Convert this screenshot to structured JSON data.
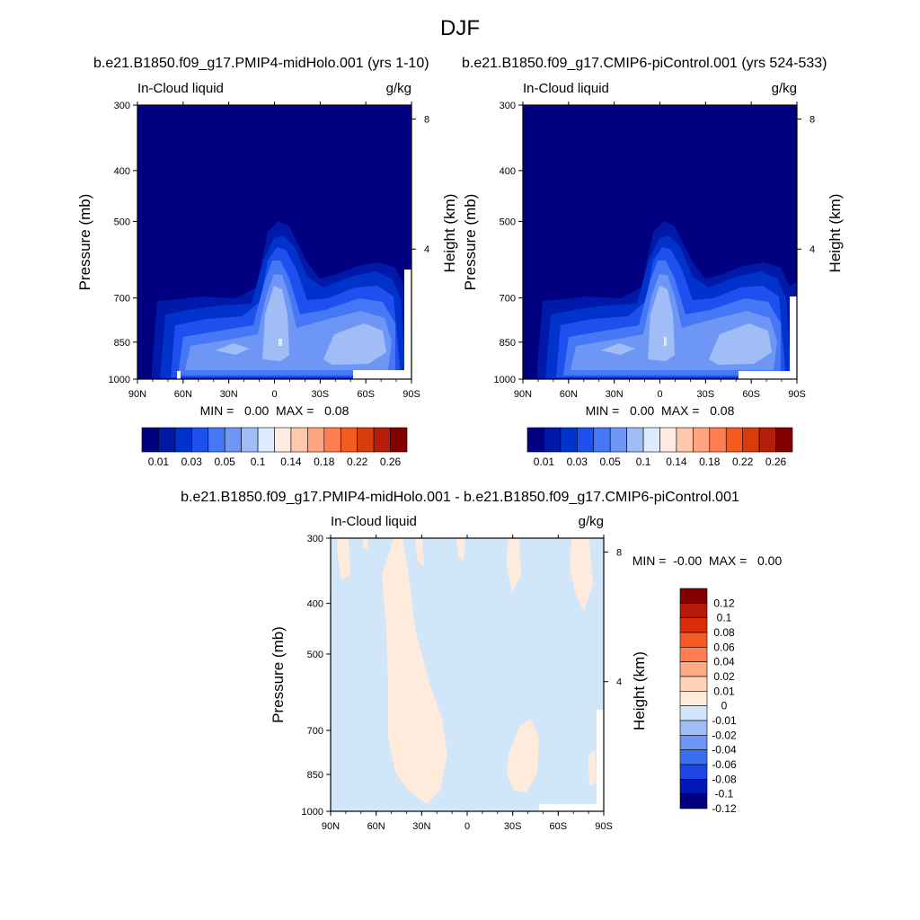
{
  "page_title": "DJF",
  "diff_title": "b.e21.B1850.f09_g17.PMIP4-midHolo.001 - b.e21.B1850.f09_g17.CMIP6-piControl.001",
  "colors": {
    "seq": [
      "#000080",
      "#0019a8",
      "#0032cc",
      "#1e50f0",
      "#4678f5",
      "#6e96f5",
      "#a0bef5",
      "#dcebff",
      "#ffebe1",
      "#ffc8aa",
      "#ffa582",
      "#ff7d50",
      "#f55a1e",
      "#d73c0a",
      "#b41e0a",
      "#820000"
    ],
    "diff": [
      "#000080",
      "#0019b4",
      "#1e46e6",
      "#3c6ef0",
      "#6e96f5",
      "#a0bef5",
      "#d2e6fa",
      "#ffebdc",
      "#ffd2b9",
      "#ffaa82",
      "#ff7d50",
      "#f55a23",
      "#dc2d0a",
      "#b4190a",
      "#820000"
    ]
  },
  "chart_data": [
    {
      "type": "heatmap",
      "title": "b.e21.B1850.f09_g17.PMIP4-midHolo.001 (yrs 1-10)",
      "left_string": "In-Cloud liquid",
      "right_string": "g/kg",
      "ylabel": "Pressure (mb)",
      "ylabel_right": "Height (km)",
      "x_ticks": [
        "90N",
        "60N",
        "30N",
        "0",
        "30S",
        "60S",
        "90S"
      ],
      "y_ticks": [
        "300",
        "400",
        "500",
        "700",
        "850",
        "1000"
      ],
      "y_right_ticks": [
        "8",
        "4"
      ],
      "y_scale": "log",
      "ylim": [
        1000,
        300
      ],
      "stats": "MIN =   0.00  MAX =   0.08",
      "colorbar_levels": [
        "0.01",
        "0.03",
        "0.05",
        "0.1",
        "0.14",
        "0.18",
        "0.22",
        "0.26"
      ]
    },
    {
      "type": "heatmap",
      "title": "b.e21.B1850.f09_g17.CMIP6-piControl.001 (yrs 524-533)",
      "left_string": "In-Cloud liquid",
      "right_string": "g/kg",
      "ylabel": "Pressure (mb)",
      "ylabel_right": "Height (km)",
      "x_ticks": [
        "90N",
        "60N",
        "30N",
        "0",
        "30S",
        "60S",
        "90S"
      ],
      "y_ticks": [
        "300",
        "400",
        "500",
        "700",
        "850",
        "1000"
      ],
      "y_right_ticks": [
        "8",
        "4"
      ],
      "y_scale": "log",
      "ylim": [
        1000,
        300
      ],
      "stats": "MIN =   0.00  MAX =   0.08",
      "colorbar_levels": [
        "0.01",
        "0.03",
        "0.05",
        "0.1",
        "0.14",
        "0.18",
        "0.22",
        "0.26"
      ]
    },
    {
      "type": "heatmap",
      "left_string": "In-Cloud liquid",
      "right_string": "g/kg",
      "ylabel": "Pressure (mb)",
      "ylabel_right": "Height (km)",
      "x_ticks": [
        "90N",
        "60N",
        "30N",
        "0",
        "30S",
        "60S",
        "90S"
      ],
      "y_ticks": [
        "300",
        "400",
        "500",
        "700",
        "850",
        "1000"
      ],
      "y_right_ticks": [
        "8",
        "4"
      ],
      "y_scale": "log",
      "ylim": [
        1000,
        300
      ],
      "stats": "MIN =  -0.00  MAX =   0.00",
      "colorbar_levels": [
        "0.12",
        "0.1",
        "0.08",
        "0.06",
        "0.04",
        "0.02",
        "0.01",
        "0",
        "-0.01",
        "-0.02",
        "-0.04",
        "-0.06",
        "-0.08",
        "-0.1",
        "-0.12"
      ]
    }
  ]
}
